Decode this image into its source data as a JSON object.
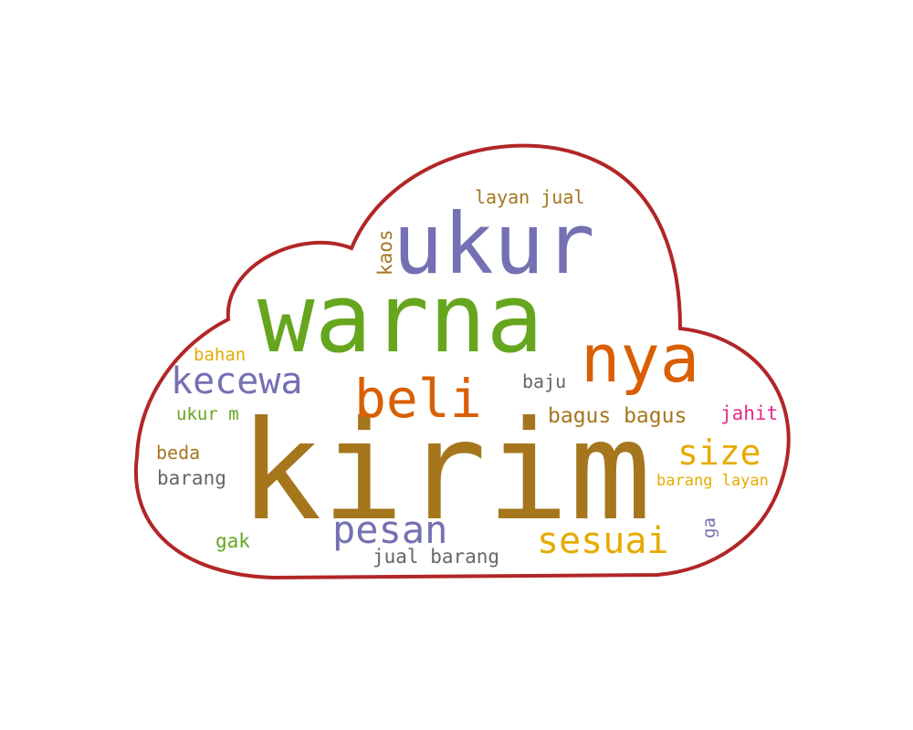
{
  "colors": {
    "cloud_outline": "#b22626",
    "brown": "#a6761d",
    "green": "#66a61e",
    "purple": "#7570b3",
    "orange": "#d95f02",
    "gold": "#e6ab02",
    "gray": "#666666",
    "pink": "#e7298a"
  },
  "words": [
    {
      "key": "kirim",
      "text": "kirim",
      "color": "brown"
    },
    {
      "key": "warna",
      "text": "warna",
      "color": "green"
    },
    {
      "key": "ukur",
      "text": "ukur",
      "color": "purple"
    },
    {
      "key": "nya",
      "text": "nya",
      "color": "orange"
    },
    {
      "key": "beli",
      "text": "beli",
      "color": "orange"
    },
    {
      "key": "kecewa",
      "text": "kecewa",
      "color": "purple"
    },
    {
      "key": "pesan",
      "text": "pesan",
      "color": "purple"
    },
    {
      "key": "sesuai",
      "text": "sesuai",
      "color": "gold"
    },
    {
      "key": "size",
      "text": "size",
      "color": "gold"
    },
    {
      "key": "bagus-bagus",
      "text": "bagus bagus",
      "color": "brown"
    },
    {
      "key": "layan-jual",
      "text": "layan jual",
      "color": "brown"
    },
    {
      "key": "kaos",
      "text": "kaos",
      "color": "brown"
    },
    {
      "key": "bahan",
      "text": "bahan",
      "color": "gold"
    },
    {
      "key": "baju",
      "text": "baju",
      "color": "gray"
    },
    {
      "key": "ukur-m",
      "text": "ukur m",
      "color": "green"
    },
    {
      "key": "jahit",
      "text": "jahit",
      "color": "pink"
    },
    {
      "key": "beda",
      "text": "beda",
      "color": "brown"
    },
    {
      "key": "barang",
      "text": "barang",
      "color": "gray"
    },
    {
      "key": "barang-layan",
      "text": "barang layan",
      "color": "gold"
    },
    {
      "key": "gak",
      "text": "gak",
      "color": "green"
    },
    {
      "key": "ga",
      "text": "ga",
      "color": "purple"
    },
    {
      "key": "jual-barang",
      "text": "jual barang",
      "color": "gray"
    }
  ]
}
